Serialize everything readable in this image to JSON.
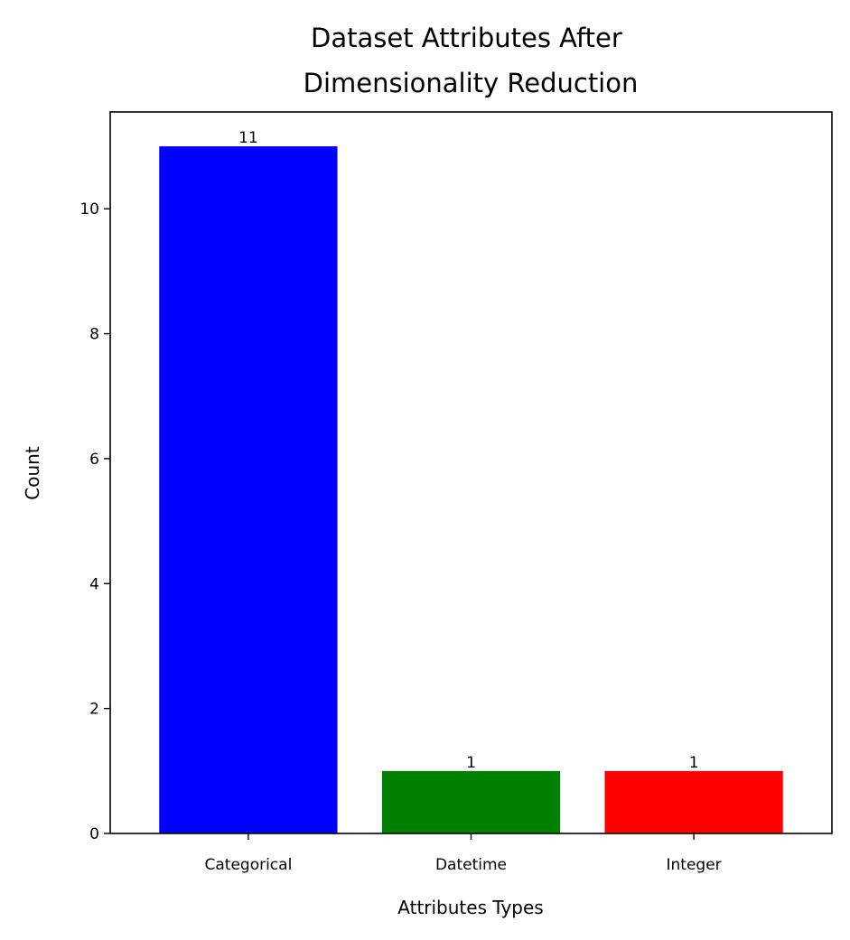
{
  "chart_data": {
    "type": "bar",
    "title_lines": [
      "Dataset Attributes After ",
      "Dimensionality Reduction"
    ],
    "xlabel": "Attributes Types",
    "ylabel": "Count",
    "categories": [
      "Categorical",
      "Datetime",
      "Integer"
    ],
    "values": [
      11,
      1,
      1
    ],
    "data_labels": [
      "11",
      "1",
      "1"
    ],
    "bar_colors": [
      "#0000ff",
      "#008000",
      "#ff0000"
    ],
    "ylim": [
      0,
      11.55
    ],
    "yticks": [
      0,
      2,
      4,
      6,
      8,
      10
    ],
    "ytick_labels": [
      "0",
      "2",
      "4",
      "6",
      "8",
      "10"
    ],
    "grid": false,
    "legend": "none"
  }
}
